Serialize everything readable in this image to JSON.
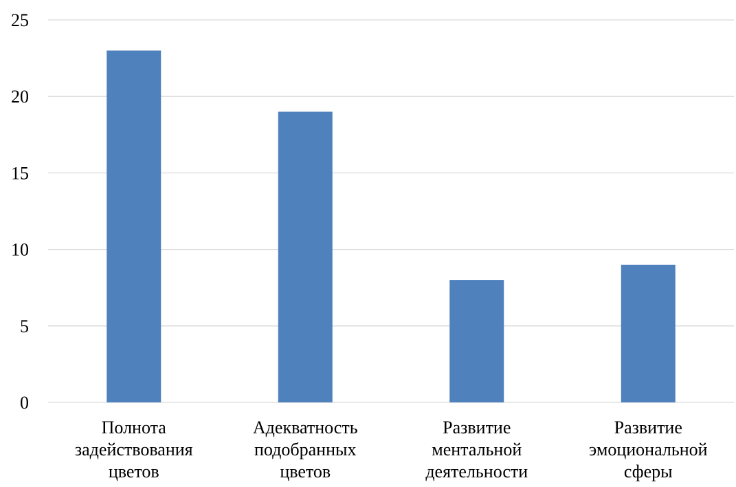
{
  "chart_data": {
    "type": "bar",
    "title": "",
    "xlabel": "",
    "ylabel": "",
    "categories": [
      [
        "Полнота",
        "задействования",
        "цветов"
      ],
      [
        "Адекватность",
        "подобранных",
        "цветов"
      ],
      [
        "Развитие",
        "ментальной",
        "деятельности"
      ],
      [
        "Развитие",
        "эмоциональной",
        "сферы"
      ]
    ],
    "values": [
      23,
      19,
      8,
      9
    ],
    "ylim": [
      0,
      25
    ],
    "yticks": [
      "0",
      "5",
      "10",
      "15",
      "20",
      "25"
    ],
    "grid": true,
    "legend": "none",
    "bar_color": "#4f81bd"
  }
}
